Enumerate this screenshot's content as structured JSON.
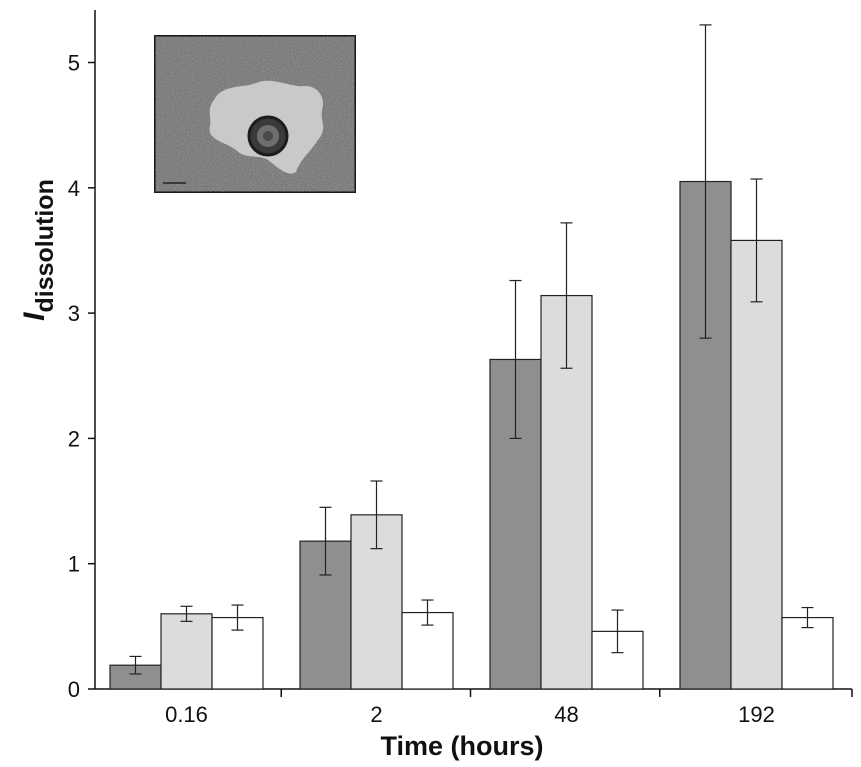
{
  "chart_data": {
    "type": "bar",
    "title": "",
    "xlabel": "Time (hours)",
    "ylabel": {
      "symbol": "I",
      "subscript": "dissolution"
    },
    "categories": [
      "0.16",
      "2",
      "48",
      "192"
    ],
    "ylim": [
      0,
      5.5
    ],
    "yticks": [
      0,
      1,
      2,
      3,
      4,
      5
    ],
    "grid": false,
    "legend": "none",
    "series": [
      {
        "color": "#8f8f8f",
        "values": [
          0.19,
          1.18,
          2.63,
          4.05
        ],
        "errors": [
          0.07,
          0.27,
          0.63,
          1.25
        ]
      },
      {
        "color": "#dcdcdc",
        "values": [
          0.6,
          1.39,
          3.14,
          3.58
        ],
        "errors": [
          0.06,
          0.27,
          0.58,
          0.49
        ]
      },
      {
        "color": "#ffffff",
        "values": [
          0.57,
          0.61,
          0.46,
          0.57
        ],
        "errors": [
          0.1,
          0.1,
          0.17,
          0.08
        ]
      }
    ],
    "inset": {
      "kind": "micrograph",
      "position": "top-left"
    }
  }
}
